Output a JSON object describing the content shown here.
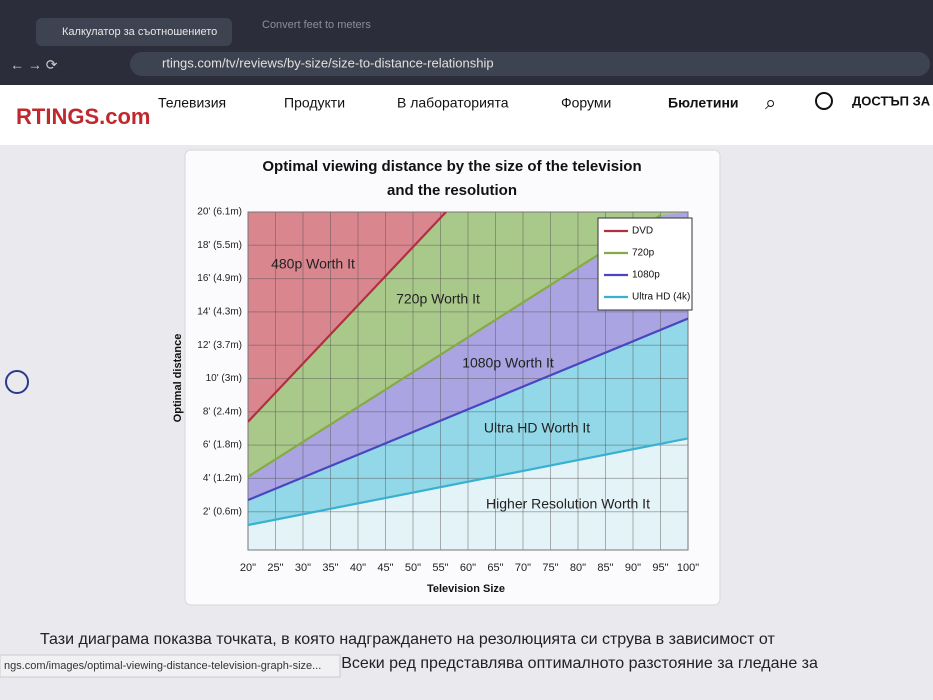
{
  "browser": {
    "tabs": [
      "Калкулатор за съотношението",
      "Convert feet to meters"
    ],
    "url": "rtings.com/tv/reviews/by-size/size-to-distance-relationship",
    "status": "ngs.com/images/optimal-viewing-distance-television-graph-size..."
  },
  "site_nav": {
    "logo": "RTINGS.com",
    "items": [
      "Телевизия",
      "Продукти",
      "В лабораторията",
      "Форуми",
      "Бюлетини"
    ],
    "access": "ДОСТЪП ЗА"
  },
  "article": {
    "paragraph": [
      "Тази диаграма показва точката, в която надграждането на резолюцията си струва в зависимост от",
      "размера и разстоянието до телевизора. Всеки ред представлява оптималното разстояние за гледане за"
    ]
  },
  "chart_data": {
    "type": "line",
    "title": [
      "Optimal viewing distance by the size of the television",
      "and the resolution"
    ],
    "x_label": "Television Size",
    "y_label": "Optimal distance",
    "xlim": [
      20,
      100
    ],
    "ylim": [
      0,
      20
    ],
    "xticks": [
      {
        "value": 20,
        "label": "20\""
      },
      {
        "value": 25,
        "label": "25\""
      },
      {
        "value": 30,
        "label": "30\""
      },
      {
        "value": 35,
        "label": "35\""
      },
      {
        "value": 40,
        "label": "40\""
      },
      {
        "value": 45,
        "label": "45\""
      },
      {
        "value": 50,
        "label": "50\""
      },
      {
        "value": 55,
        "label": "55\""
      },
      {
        "value": 60,
        "label": "60\""
      },
      {
        "value": 65,
        "label": "65\""
      },
      {
        "value": 70,
        "label": "70\""
      },
      {
        "value": 75,
        "label": "75\""
      },
      {
        "value": 80,
        "label": "80\""
      },
      {
        "value": 85,
        "label": "85\""
      },
      {
        "value": 90,
        "label": "90\""
      },
      {
        "value": 95,
        "label": "95\""
      },
      {
        "value": 100,
        "label": "100\""
      }
    ],
    "yticks": [
      {
        "value": 2,
        "label": "2' (0.6m)"
      },
      {
        "value": 4,
        "label": "4' (1.2m)"
      },
      {
        "value": 6,
        "label": "6' (1.8m)"
      },
      {
        "value": 8,
        "label": "8' (2.4m)"
      },
      {
        "value": 10,
        "label": "10' (3m)"
      },
      {
        "value": 12,
        "label": "12' (3.7m)"
      },
      {
        "value": 14,
        "label": "14' (4.3m)"
      },
      {
        "value": 16,
        "label": "16' (4.9m)"
      },
      {
        "value": 18,
        "label": "18' (5.5m)"
      },
      {
        "value": 20,
        "label": "20' (6.1m)"
      }
    ],
    "grid": true,
    "legend": "upper right",
    "series": [
      {
        "name": "DVD",
        "color": "#b03040",
        "fill": "#d9868f",
        "x": [
          20,
          56
        ],
        "values": [
          7.4,
          20
        ]
      },
      {
        "name": "720p",
        "color": "#86ab44",
        "fill": "#a9c98a",
        "x": [
          20,
          95
        ],
        "values": [
          4.1,
          19.8
        ]
      },
      {
        "name": "1080p",
        "color": "#4a46c0",
        "fill": "#aaa4e2",
        "x": [
          20,
          100
        ],
        "values": [
          2.7,
          13.6
        ]
      },
      {
        "name": "Ultra HD (4k)",
        "color": "#3ab0d0",
        "fill": "#92d8e8",
        "x": [
          20,
          100
        ],
        "values": [
          1.2,
          6.4
        ]
      }
    ],
    "below_fill": "#e4f3f7",
    "annotations": [
      "480p Worth It",
      "720p Worth It",
      "1080p Worth It",
      "Ultra HD Worth It",
      "Higher Resolution Worth It"
    ]
  }
}
